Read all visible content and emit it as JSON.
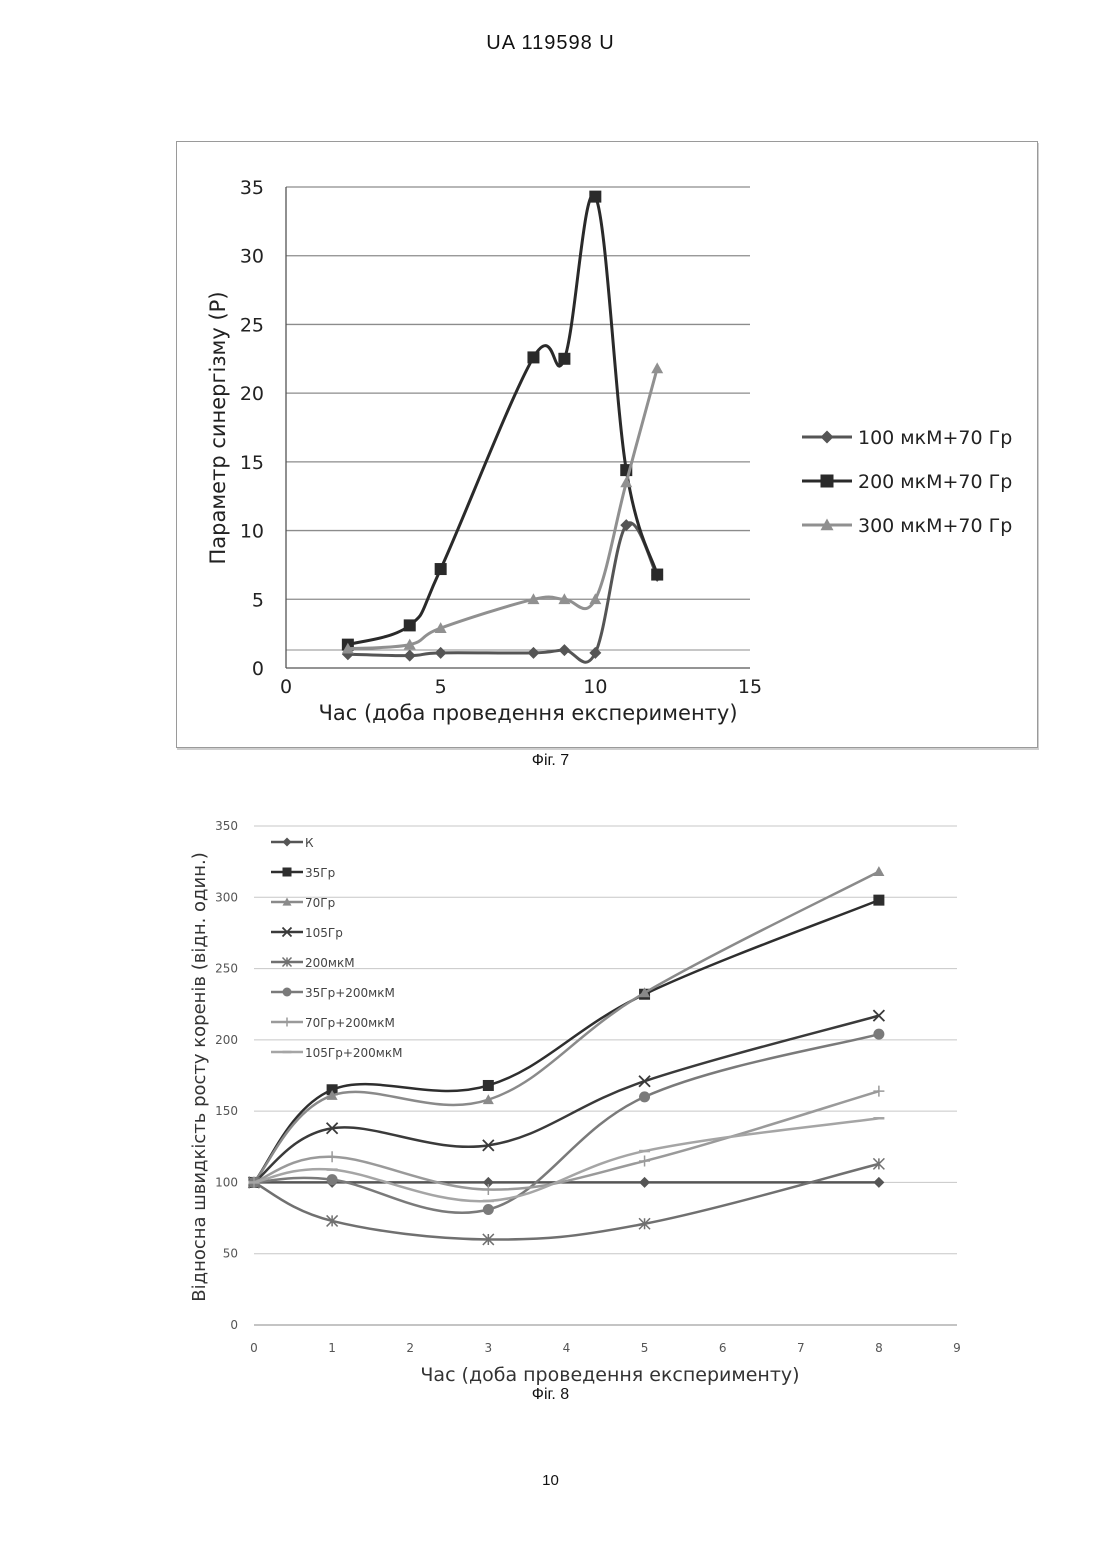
{
  "header": "UA   119598   U",
  "page_number": "10",
  "figures": {
    "fig7_caption": "Фіг. 7",
    "fig8_caption": "Фіг. 8"
  },
  "chart_data": [
    {
      "type": "line",
      "ylabel": "Параметр синергізму (P)",
      "xlabel": "Час (доба проведення експерименту)",
      "xlim": [
        0,
        15
      ],
      "ylim": [
        0,
        35
      ],
      "xticks": [
        0,
        5,
        10,
        15
      ],
      "yticks": [
        0,
        5,
        10,
        15,
        20,
        25,
        30,
        35
      ],
      "grid": true,
      "legend": "right",
      "series": [
        {
          "name": "100 мкМ+70 Гр",
          "marker": "diamond",
          "color": "#555555",
          "x": [
            2,
            4,
            5,
            8,
            9,
            10,
            11,
            12
          ],
          "y": [
            1,
            0.9,
            1.1,
            1.1,
            1.3,
            1.1,
            10.4,
            6.7
          ]
        },
        {
          "name": "200 мкМ+70 Гр",
          "marker": "square",
          "color": "#2a2a2a",
          "x": [
            2,
            4,
            5,
            8,
            9,
            10,
            11,
            12
          ],
          "y": [
            1.7,
            3.1,
            7.2,
            22.6,
            22.5,
            34.3,
            14.4,
            6.8
          ]
        },
        {
          "name": "300 мкМ+70 Гр",
          "marker": "triangle",
          "color": "#909090",
          "x": [
            2,
            4,
            5,
            8,
            9,
            10,
            11,
            12
          ],
          "y": [
            1.4,
            1.7,
            2.9,
            5,
            5,
            5,
            13.5,
            21.8
          ]
        }
      ]
    },
    {
      "type": "line",
      "ylabel": "Відносна швидкість росту коренів (відн. один.)",
      "xlabel": "Час (доба проведення експерименту)",
      "xlim": [
        0,
        9
      ],
      "ylim": [
        0,
        350
      ],
      "xticks": [
        0,
        1,
        2,
        3,
        4,
        5,
        6,
        7,
        8,
        9
      ],
      "yticks": [
        0,
        50,
        100,
        150,
        200,
        250,
        300,
        350
      ],
      "grid": true,
      "legend": "top-left",
      "x": [
        0,
        1,
        3,
        5,
        8
      ],
      "series": [
        {
          "name": "К",
          "marker": "diamond",
          "color": "#555555",
          "values": [
            100,
            100,
            100,
            100,
            100
          ]
        },
        {
          "name": "35Гр",
          "marker": "square",
          "color": "#2e2e2e",
          "values": [
            100,
            165,
            168,
            232,
            298
          ]
        },
        {
          "name": "70Гр",
          "marker": "triangle",
          "color": "#8a8a8a",
          "values": [
            100,
            161,
            158,
            233,
            318
          ]
        },
        {
          "name": "105Гр",
          "marker": "x",
          "color": "#3a3a3a",
          "values": [
            100,
            138,
            126,
            171,
            217
          ]
        },
        {
          "name": "200мкМ",
          "marker": "star",
          "color": "#707070",
          "values": [
            100,
            73,
            60,
            71,
            113
          ]
        },
        {
          "name": "35Гр+200мкМ",
          "marker": "circle",
          "color": "#7a7a7a",
          "values": [
            100,
            102,
            81,
            160,
            204
          ]
        },
        {
          "name": "70Гр+200мкМ",
          "marker": "plus",
          "color": "#9a9a9a",
          "values": [
            100,
            118,
            95,
            115,
            164
          ]
        },
        {
          "name": "105Гр+200мкМ",
          "marker": "dash",
          "color": "#a5a5a5",
          "values": [
            100,
            109,
            87,
            122,
            145
          ]
        }
      ]
    }
  ]
}
